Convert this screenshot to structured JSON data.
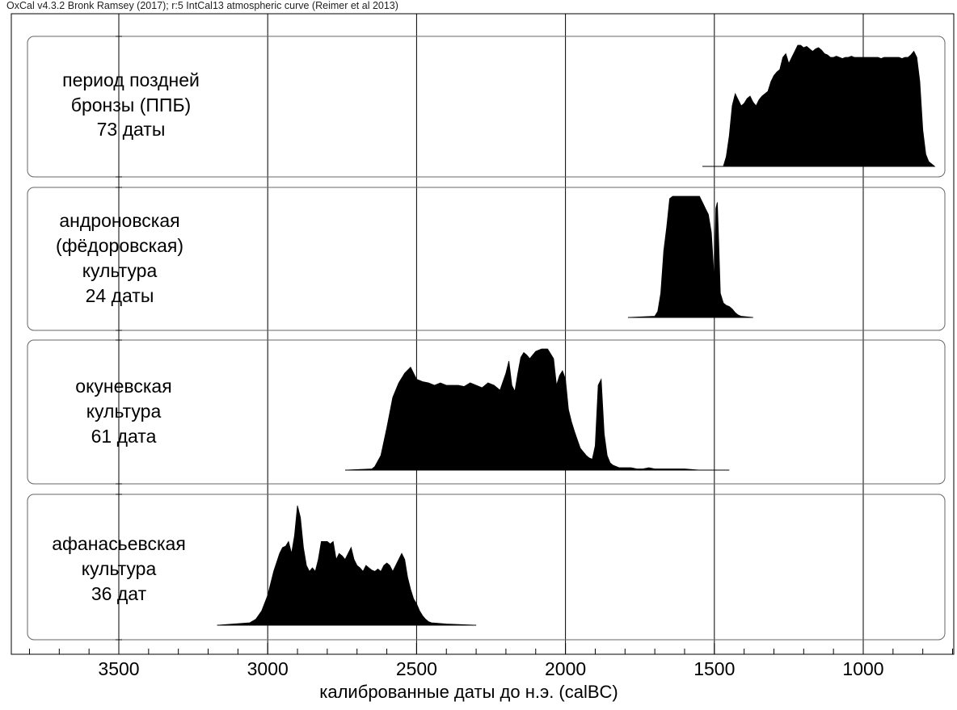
{
  "header": {
    "text": "OxCal v4.3.2 Bronk Ramsey (2017); r:5 IntCal13 atmospheric curve (Reimer et al 2013)"
  },
  "chart_data": {
    "type": "area",
    "title": "",
    "xlabel": "калиброванные даты до н.э. (calBC)",
    "ylabel": "",
    "x_axis": {
      "range": [
        3820,
        690
      ],
      "reversed": true,
      "major_ticks": [
        3500,
        3000,
        2500,
        2000,
        1500,
        1000
      ],
      "tick_labels": [
        "3500",
        "3000",
        "2500",
        "2000",
        "1500",
        "1000"
      ],
      "minor_tick_step": 100
    },
    "grid": true,
    "colors": {
      "fill": "#000000",
      "grid": "#000000",
      "panel_border": "#666666"
    },
    "series": [
      {
        "label_lines": [
          "период поздней",
          "бронзы (ППБ)",
          "73 даты"
        ],
        "x": [
          1540,
          1470,
          1460,
          1450,
          1440,
          1430,
          1420,
          1410,
          1400,
          1390,
          1380,
          1370,
          1360,
          1350,
          1340,
          1330,
          1320,
          1310,
          1300,
          1290,
          1280,
          1270,
          1260,
          1250,
          1240,
          1230,
          1220,
          1210,
          1200,
          1190,
          1180,
          1170,
          1160,
          1150,
          1140,
          1130,
          1120,
          1110,
          1100,
          1090,
          1080,
          1070,
          1060,
          1050,
          1040,
          1030,
          1020,
          1010,
          1000,
          990,
          980,
          970,
          960,
          950,
          940,
          930,
          920,
          910,
          900,
          890,
          880,
          870,
          860,
          850,
          840,
          830,
          820,
          810,
          800,
          790,
          780,
          770,
          760
        ],
        "density": [
          0,
          0,
          0.08,
          0.25,
          0.5,
          0.6,
          0.55,
          0.5,
          0.52,
          0.56,
          0.58,
          0.53,
          0.5,
          0.55,
          0.58,
          0.6,
          0.62,
          0.7,
          0.75,
          0.78,
          0.8,
          0.9,
          0.93,
          0.85,
          0.9,
          0.95,
          1.0,
          1.0,
          0.98,
          0.99,
          0.97,
          0.95,
          0.97,
          0.98,
          0.96,
          0.93,
          0.92,
          0.9,
          0.9,
          0.91,
          0.9,
          0.89,
          0.9,
          0.9,
          0.91,
          0.9,
          0.9,
          0.9,
          0.9,
          0.9,
          0.9,
          0.9,
          0.9,
          0.9,
          0.89,
          0.9,
          0.9,
          0.9,
          0.9,
          0.9,
          0.9,
          0.89,
          0.9,
          0.9,
          0.92,
          0.95,
          0.9,
          0.7,
          0.3,
          0.1,
          0.04,
          0.02,
          0
        ]
      },
      {
        "label_lines": [
          "андроновская",
          "(фёдоровская)",
          "культура",
          "24 даты"
        ],
        "x": [
          1790,
          1700,
          1690,
          1680,
          1670,
          1660,
          1650,
          1640,
          1630,
          1620,
          1610,
          1600,
          1590,
          1580,
          1570,
          1560,
          1550,
          1540,
          1530,
          1520,
          1510,
          1500,
          1495,
          1490,
          1485,
          1480,
          1470,
          1460,
          1450,
          1440,
          1430,
          1420,
          1410,
          1370
        ],
        "density": [
          0,
          0.01,
          0.05,
          0.2,
          0.55,
          0.75,
          0.98,
          1.0,
          1.0,
          1.0,
          1.0,
          1.0,
          1.0,
          1.0,
          1.0,
          1.0,
          1.0,
          0.95,
          0.9,
          0.85,
          0.7,
          0.3,
          0.9,
          0.95,
          0.6,
          0.2,
          0.12,
          0.1,
          0.09,
          0.07,
          0.04,
          0.02,
          0.01,
          0
        ]
      },
      {
        "label_lines": [
          "окуневская",
          "культура",
          "61 дата"
        ],
        "x": [
          2740,
          2650,
          2640,
          2620,
          2600,
          2580,
          2560,
          2540,
          2520,
          2500,
          2480,
          2460,
          2440,
          2420,
          2400,
          2380,
          2360,
          2340,
          2320,
          2300,
          2280,
          2260,
          2240,
          2220,
          2200,
          2190,
          2180,
          2170,
          2160,
          2150,
          2140,
          2130,
          2120,
          2100,
          2080,
          2060,
          2040,
          2030,
          2020,
          2010,
          2000,
          1990,
          1980,
          1970,
          1960,
          1950,
          1940,
          1930,
          1920,
          1910,
          1900,
          1890,
          1880,
          1870,
          1860,
          1850,
          1840,
          1830,
          1820,
          1800,
          1780,
          1760,
          1740,
          1720,
          1700,
          1650,
          1600,
          1550,
          1500,
          1450
        ],
        "density": [
          0,
          0.01,
          0.03,
          0.12,
          0.35,
          0.6,
          0.72,
          0.8,
          0.85,
          0.75,
          0.73,
          0.72,
          0.7,
          0.72,
          0.7,
          0.7,
          0.7,
          0.69,
          0.72,
          0.7,
          0.68,
          0.72,
          0.7,
          0.66,
          0.8,
          0.9,
          0.7,
          0.65,
          0.8,
          0.93,
          0.97,
          0.95,
          0.92,
          0.98,
          1.0,
          1.0,
          0.92,
          0.7,
          0.78,
          0.82,
          0.75,
          0.5,
          0.4,
          0.32,
          0.25,
          0.18,
          0.15,
          0.12,
          0.1,
          0.09,
          0.2,
          0.7,
          0.75,
          0.3,
          0.12,
          0.06,
          0.04,
          0.03,
          0.02,
          0.02,
          0.02,
          0.01,
          0.01,
          0.02,
          0.01,
          0.01,
          0.01,
          0,
          0,
          0
        ]
      },
      {
        "label_lines": [
          "афанасьевская",
          "культура",
          "36 дат"
        ],
        "x": [
          3170,
          3060,
          3040,
          3020,
          3000,
          2980,
          2960,
          2950,
          2940,
          2930,
          2920,
          2910,
          2900,
          2890,
          2880,
          2870,
          2860,
          2850,
          2840,
          2830,
          2820,
          2810,
          2800,
          2790,
          2780,
          2770,
          2760,
          2750,
          2740,
          2730,
          2720,
          2710,
          2700,
          2690,
          2680,
          2670,
          2660,
          2650,
          2640,
          2630,
          2620,
          2610,
          2600,
          2590,
          2580,
          2570,
          2560,
          2550,
          2540,
          2530,
          2520,
          2510,
          2500,
          2490,
          2480,
          2470,
          2460,
          2450,
          2400,
          2300
        ],
        "density": [
          0,
          0.02,
          0.05,
          0.12,
          0.25,
          0.45,
          0.6,
          0.65,
          0.66,
          0.7,
          0.6,
          0.75,
          1.0,
          0.9,
          0.65,
          0.5,
          0.45,
          0.48,
          0.45,
          0.55,
          0.7,
          0.7,
          0.7,
          0.68,
          0.7,
          0.55,
          0.6,
          0.58,
          0.55,
          0.6,
          0.65,
          0.55,
          0.5,
          0.48,
          0.45,
          0.5,
          0.48,
          0.46,
          0.45,
          0.47,
          0.45,
          0.5,
          0.52,
          0.5,
          0.45,
          0.5,
          0.55,
          0.6,
          0.55,
          0.4,
          0.3,
          0.22,
          0.18,
          0.12,
          0.08,
          0.05,
          0.03,
          0.02,
          0.01,
          0
        ]
      }
    ]
  }
}
